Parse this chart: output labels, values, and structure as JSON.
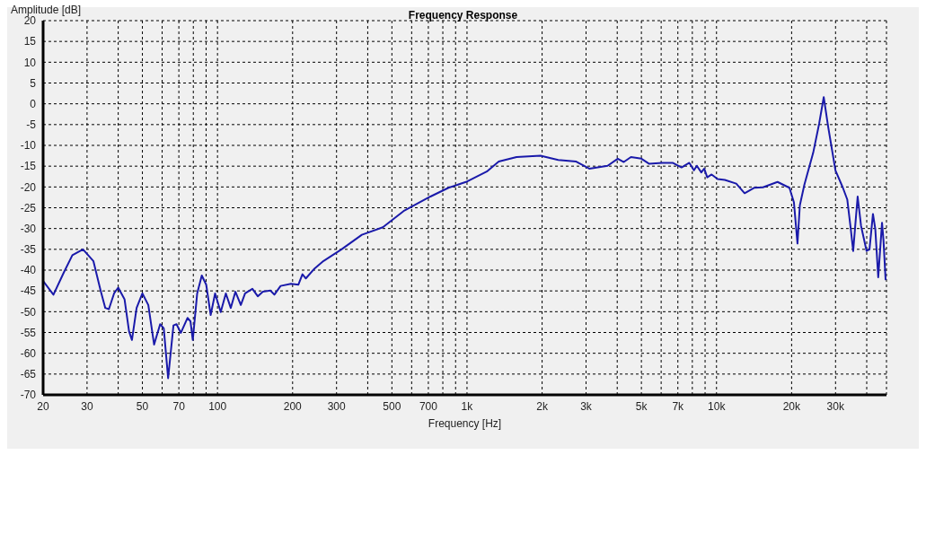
{
  "chart_data": {
    "type": "line",
    "title": "Frequency Response",
    "xlabel": "Frequency [Hz]",
    "ylabel": "Amplitude [dB]",
    "log": "x",
    "grid": true,
    "marker": "none",
    "line_style": "solid",
    "xlim": [
      20,
      48000
    ],
    "ylim": [
      -70,
      20
    ],
    "xticks": [
      20,
      30,
      {
        "value": 40,
        "label": null
      },
      50,
      {
        "value": 60,
        "label": null
      },
      70,
      {
        "value": 80,
        "label": null
      },
      {
        "value": 90,
        "label": null
      },
      100,
      200,
      300,
      {
        "value": 400,
        "label": null
      },
      500,
      {
        "value": 600,
        "label": null
      },
      700,
      {
        "value": 800,
        "label": null
      },
      {
        "value": 900,
        "label": null
      },
      {
        "value": 1000,
        "label": "1k"
      },
      {
        "value": 2000,
        "label": "2k"
      },
      {
        "value": 3000,
        "label": "3k"
      },
      {
        "value": 4000,
        "label": null
      },
      {
        "value": 5000,
        "label": "5k"
      },
      {
        "value": 6000,
        "label": null
      },
      {
        "value": 7000,
        "label": "7k"
      },
      {
        "value": 8000,
        "label": null
      },
      {
        "value": 9000,
        "label": null
      },
      {
        "value": 10000,
        "label": "10k"
      },
      {
        "value": 20000,
        "label": "20k"
      },
      {
        "value": 30000,
        "label": "30k"
      },
      {
        "value": 40000,
        "label": null
      }
    ],
    "yticks": [
      -70,
      -65,
      -60,
      -55,
      -50,
      -45,
      -40,
      -35,
      -30,
      -25,
      -20,
      -15,
      -10,
      -5,
      0,
      5,
      10,
      15,
      20
    ],
    "series": [
      {
        "color": "#1a1aaa",
        "x": [
          20,
          22,
          24.2,
          26.2,
          28.9,
          31.8,
          34,
          35.5,
          36.7,
          38.5,
          40,
          42.4,
          44.2,
          45.4,
          47.4,
          50,
          52.8,
          55.7,
          58.9,
          60.9,
          63.4,
          66.6,
          68.5,
          71.3,
          75.8,
          77.9,
          79.6,
          82.9,
          86.5,
          90.1,
          93.9,
          97.8,
          103,
          108,
          113,
          118,
          124,
          129,
          138,
          145,
          152,
          163,
          169,
          179,
          197,
          211,
          219,
          226,
          245,
          266,
          289,
          314,
          379,
          460,
          557,
          714,
          843,
          990,
          1200,
          1340,
          1580,
          1970,
          2320,
          2740,
          3090,
          3660,
          4020,
          4250,
          4540,
          5000,
          5360,
          6060,
          6670,
          7240,
          7780,
          8120,
          8340,
          8690,
          8930,
          9180,
          9560,
          10100,
          10800,
          12000,
          12960,
          14140,
          15340,
          17560,
          19600,
          20430,
          21110,
          21580,
          22490,
          24400,
          25800,
          26900,
          28000,
          29970,
          32100,
          33420,
          34520,
          35300,
          36060,
          36790,
          37970,
          39950,
          41030,
          42370,
          43290,
          44480,
          46070,
          46700,
          47620
        ],
        "values": [
          -42.6,
          -45.9,
          -40.6,
          -36.4,
          -35,
          -37.8,
          -44.9,
          -49.1,
          -49.4,
          -45.6,
          -44.2,
          -47,
          -54.7,
          -56.8,
          -49.1,
          -45.6,
          -48.4,
          -57.9,
          -53,
          -54,
          -66,
          -53.3,
          -53,
          -55.1,
          -51.5,
          -52.3,
          -56.8,
          -45.6,
          -41.3,
          -43.5,
          -50.8,
          -45.6,
          -50.1,
          -45.6,
          -49.1,
          -45.2,
          -48.4,
          -45.6,
          -44.5,
          -46.3,
          -45.2,
          -44.9,
          -45.9,
          -43.8,
          -43.3,
          -43.5,
          -41,
          -42,
          -39.6,
          -37.8,
          -36.4,
          -35,
          -31.5,
          -29.7,
          -25.8,
          -22.3,
          -20.2,
          -18.8,
          -16.3,
          -13.9,
          -12.8,
          -12.5,
          -13.5,
          -13.9,
          -15.6,
          -14.9,
          -13.2,
          -14,
          -12.8,
          -13.2,
          -14.4,
          -14.2,
          -14.2,
          -15.3,
          -14.2,
          -16,
          -14.9,
          -16.5,
          -15.6,
          -17.7,
          -17,
          -18.1,
          -18.3,
          -19.2,
          -21.5,
          -20.2,
          -20.1,
          -18.8,
          -20.2,
          -23.7,
          -33.6,
          -24.4,
          -19.5,
          -11.8,
          -4.7,
          1.6,
          -5.4,
          -16,
          -20.2,
          -23,
          -30.1,
          -35.4,
          -28.6,
          -22.3,
          -29.4,
          -35.4,
          -35,
          -26.5,
          -30.1,
          -41.7,
          -28.6,
          -32.9,
          -42.4
        ]
      }
    ]
  }
}
